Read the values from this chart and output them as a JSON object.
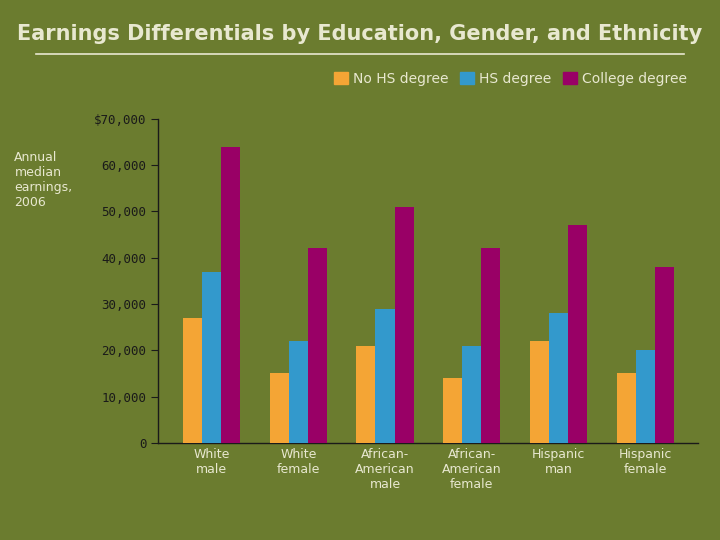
{
  "title": "Earnings Differentials by Education, Gender, and Ethnicity",
  "ylabel_text": "Annual\nmedian\nearnings,\n2006",
  "background_color": "#6b7c2f",
  "plot_bg_color": "#6b7c2f",
  "title_color": "#e8e8d0",
  "tick_label_color": "#1a1a1a",
  "ylabel_color": "#e8e8d0",
  "categories": [
    "White\nmale",
    "White\nfemale",
    "African-\nAmerican\nmale",
    "African-\nAmerican\nfemale",
    "Hispanic\nman",
    "Hispanic\nfemale"
  ],
  "series": {
    "No HS degree": {
      "color": "#f4a535",
      "values": [
        27000,
        15000,
        21000,
        14000,
        22000,
        15000
      ]
    },
    "HS degree": {
      "color": "#3399cc",
      "values": [
        37000,
        22000,
        29000,
        21000,
        28000,
        20000
      ]
    },
    "College degree": {
      "color": "#990066",
      "values": [
        64000,
        42000,
        51000,
        42000,
        47000,
        38000
      ]
    }
  },
  "ylim": [
    0,
    70000
  ],
  "yticks": [
    0,
    10000,
    20000,
    30000,
    40000,
    50000,
    60000,
    70000
  ],
  "ytick_labels": [
    "0",
    "10,000",
    "20,000",
    "30,000",
    "40,000",
    "50,000",
    "60,000",
    "$70,000"
  ],
  "bar_width": 0.22,
  "font_size_title": 15,
  "font_size_ticks": 9,
  "font_size_legend": 10,
  "font_size_ylabel": 9,
  "spine_color": "#1a1a1a",
  "legend_color": "#e8e8d0"
}
